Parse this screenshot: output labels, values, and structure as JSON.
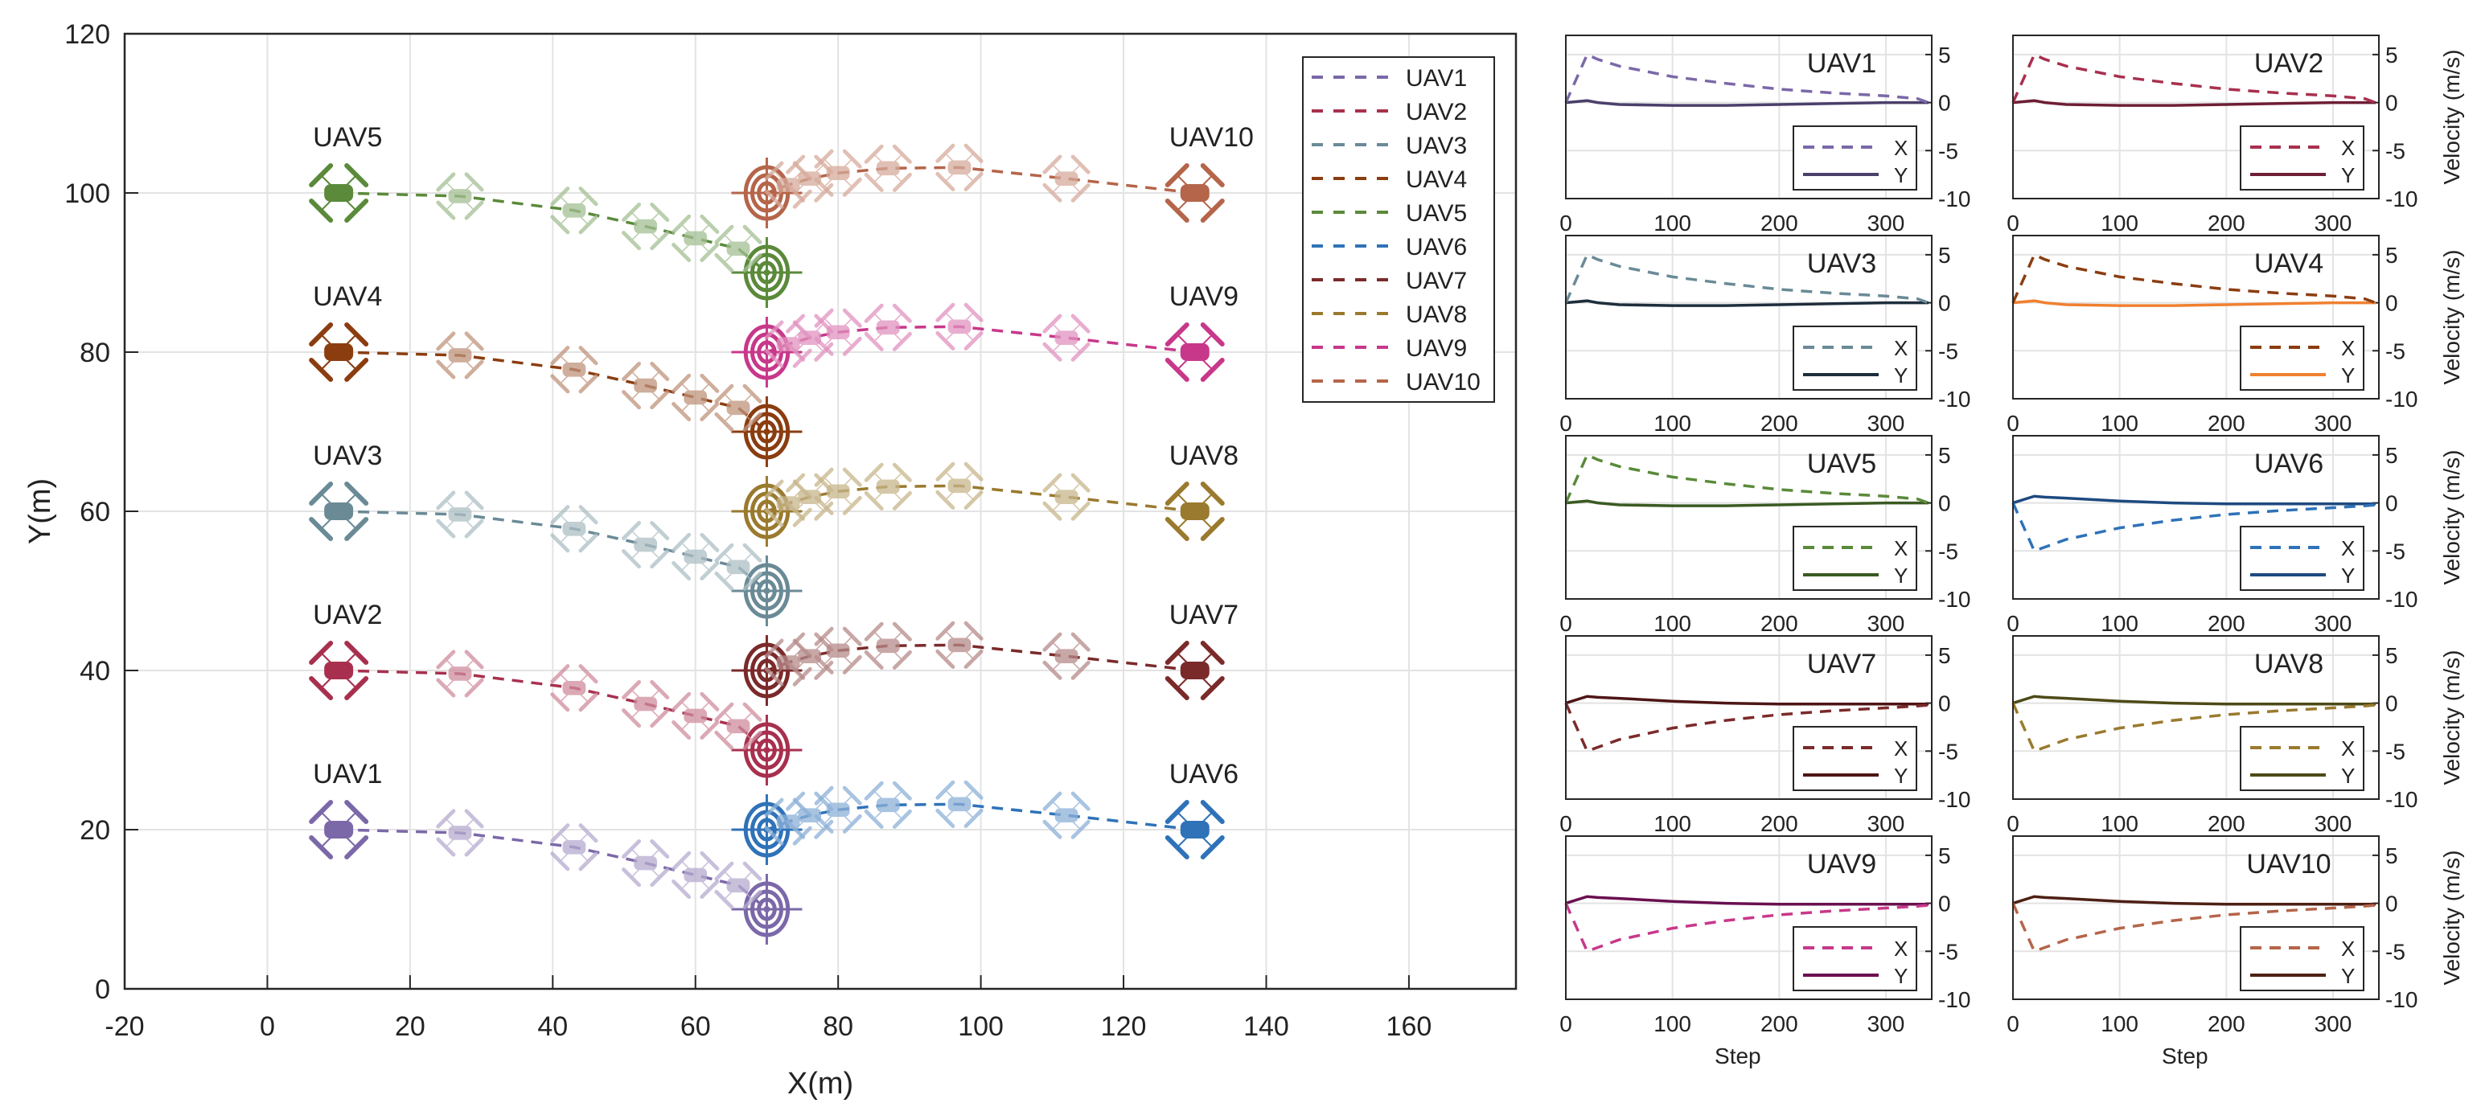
{
  "chart_data": [
    {
      "type": "line",
      "title": "",
      "xlabel": "X(m)",
      "ylabel": "Y(m)",
      "xlim": [
        -20,
        175
      ],
      "ylim": [
        0,
        120
      ],
      "xticks": [
        "-20",
        "0",
        "20",
        "40",
        "60",
        "80",
        "100",
        "120",
        "140",
        "160"
      ],
      "yticks": [
        "0",
        "20",
        "40",
        "60",
        "80",
        "100",
        "120"
      ],
      "grid": true,
      "legend_position": "top-right",
      "series": [
        {
          "name": "UAV1",
          "color": "#7b68a8",
          "label": "UAV1",
          "x": [
            10,
            27,
            43,
            53,
            60,
            66,
            70
          ],
          "y": [
            20,
            19.6,
            17.8,
            15.8,
            14.3,
            13,
            10
          ],
          "target": [
            70,
            10
          ]
        },
        {
          "name": "UAV2",
          "color": "#a8304e",
          "label": "UAV2",
          "x": [
            10,
            27,
            43,
            53,
            60,
            66,
            70
          ],
          "y": [
            40,
            39.6,
            37.8,
            35.8,
            34.3,
            33,
            30
          ],
          "target": [
            70,
            30
          ]
        },
        {
          "name": "UAV3",
          "color": "#6a8a96",
          "label": "UAV3",
          "x": [
            10,
            27,
            43,
            53,
            60,
            66,
            70
          ],
          "y": [
            60,
            59.6,
            57.8,
            55.8,
            54.3,
            53,
            50
          ],
          "target": [
            70,
            50
          ]
        },
        {
          "name": "UAV4",
          "color": "#8b3d10",
          "label": "UAV4",
          "x": [
            10,
            27,
            43,
            53,
            60,
            66,
            70
          ],
          "y": [
            80,
            79.6,
            77.8,
            75.8,
            74.3,
            73,
            70
          ],
          "target": [
            70,
            70
          ]
        },
        {
          "name": "UAV5",
          "color": "#5a8a3a",
          "label": "UAV5",
          "x": [
            10,
            27,
            43,
            53,
            60,
            66,
            70
          ],
          "y": [
            100,
            99.6,
            97.8,
            95.8,
            94.3,
            93,
            90
          ],
          "target": [
            70,
            90
          ]
        },
        {
          "name": "UAV6",
          "color": "#2f72b8",
          "label": "UAV6",
          "x": [
            130,
            112,
            97,
            87,
            80,
            76,
            73,
            70
          ],
          "y": [
            20,
            21.8,
            23.2,
            23.1,
            22.5,
            21.8,
            21,
            20
          ],
          "target": [
            70,
            20
          ]
        },
        {
          "name": "UAV7",
          "color": "#7b2a2a",
          "label": "UAV7",
          "x": [
            130,
            112,
            97,
            87,
            80,
            76,
            73,
            70
          ],
          "y": [
            40,
            41.8,
            43.2,
            43.1,
            42.5,
            41.8,
            41,
            40
          ],
          "target": [
            70,
            40
          ]
        },
        {
          "name": "UAV8",
          "color": "#9a7a2e",
          "label": "UAV8",
          "x": [
            130,
            112,
            97,
            87,
            80,
            76,
            73,
            70
          ],
          "y": [
            60,
            61.8,
            63.2,
            63.1,
            62.5,
            61.8,
            61,
            60
          ],
          "target": [
            70,
            60
          ]
        },
        {
          "name": "UAV9",
          "color": "#c8388a",
          "label": "UAV9",
          "x": [
            130,
            112,
            97,
            87,
            80,
            76,
            73,
            70
          ],
          "y": [
            80,
            81.8,
            83.2,
            83.1,
            82.5,
            81.8,
            81,
            80
          ],
          "target": [
            70,
            80
          ]
        },
        {
          "name": "UAV10",
          "color": "#b5654a",
          "label": "UAV10",
          "x": [
            130,
            112,
            97,
            87,
            80,
            76,
            73,
            70
          ],
          "y": [
            100,
            101.8,
            103.2,
            103.1,
            102.5,
            101.8,
            101,
            100
          ],
          "target": [
            70,
            100
          ]
        }
      ]
    },
    {
      "type": "line",
      "subplots": true,
      "xlabel": "Step",
      "ylabel": "Velocity (m/s)",
      "xlim": [
        0,
        343
      ],
      "ylim": [
        -10,
        7
      ],
      "xticks": [
        "0",
        "100",
        "200",
        "300"
      ],
      "yticks": [
        "5",
        "0",
        "-5",
        "-10"
      ],
      "grid": true,
      "legend_position": "bottom-right",
      "legend_labels": [
        "X",
        "Y"
      ],
      "steps": [
        0,
        20,
        30,
        50,
        100,
        150,
        200,
        250,
        300,
        330,
        340
      ],
      "panels": [
        {
          "title": "UAV1",
          "x_color": "#7b68a8",
          "y_color": "#4b3f6b",
          "vx": [
            0,
            5,
            4.5,
            3.8,
            2.7,
            2.0,
            1.4,
            1.0,
            0.7,
            0.4,
            0
          ],
          "vy": [
            0,
            0.2,
            0,
            -0.2,
            -0.3,
            -0.3,
            -0.2,
            -0.1,
            0,
            0,
            0
          ]
        },
        {
          "title": "UAV2",
          "x_color": "#a8304e",
          "y_color": "#6e1e35",
          "vx": [
            0,
            5,
            4.5,
            3.8,
            2.7,
            2.0,
            1.4,
            1.0,
            0.7,
            0.4,
            0
          ],
          "vy": [
            0,
            0.2,
            0,
            -0.2,
            -0.3,
            -0.3,
            -0.2,
            -0.1,
            0,
            0,
            0
          ]
        },
        {
          "title": "UAV3",
          "x_color": "#6a8a96",
          "y_color": "#1e2e3c",
          "vx": [
            0,
            5,
            4.5,
            3.8,
            2.7,
            2.0,
            1.4,
            1.0,
            0.7,
            0.4,
            0
          ],
          "vy": [
            0,
            0.2,
            0,
            -0.2,
            -0.3,
            -0.3,
            -0.2,
            -0.1,
            0,
            0,
            0
          ]
        },
        {
          "title": "UAV4",
          "x_color": "#8b3d10",
          "y_color": "#f08030",
          "vx": [
            0,
            5,
            4.5,
            3.8,
            2.7,
            2.0,
            1.4,
            1.0,
            0.7,
            0.4,
            0
          ],
          "vy": [
            0,
            0.2,
            0,
            -0.2,
            -0.3,
            -0.3,
            -0.2,
            -0.1,
            0,
            0,
            0
          ]
        },
        {
          "title": "UAV5",
          "x_color": "#5a8a3a",
          "y_color": "#3a5a22",
          "vx": [
            0,
            5,
            4.5,
            3.8,
            2.7,
            2.0,
            1.4,
            1.0,
            0.7,
            0.4,
            0
          ],
          "vy": [
            0,
            0.2,
            0,
            -0.2,
            -0.3,
            -0.3,
            -0.2,
            -0.1,
            0,
            0,
            0
          ]
        },
        {
          "title": "UAV6",
          "x_color": "#2f72b8",
          "y_color": "#1e4a80",
          "vx": [
            0,
            -5,
            -4.6,
            -3.8,
            -2.6,
            -1.8,
            -1.2,
            -0.8,
            -0.5,
            -0.3,
            -0.2
          ],
          "vy": [
            0,
            0.7,
            0.6,
            0.5,
            0.2,
            0,
            -0.1,
            -0.1,
            -0.1,
            -0.1,
            -0.1
          ]
        },
        {
          "title": "UAV7",
          "x_color": "#7b2a2a",
          "y_color": "#4e1515",
          "vx": [
            0,
            -5,
            -4.6,
            -3.8,
            -2.6,
            -1.8,
            -1.2,
            -0.8,
            -0.5,
            -0.3,
            -0.2
          ],
          "vy": [
            0,
            0.7,
            0.6,
            0.5,
            0.2,
            0,
            -0.1,
            -0.1,
            -0.1,
            -0.1,
            -0.1
          ]
        },
        {
          "title": "UAV8",
          "x_color": "#9a7a2e",
          "y_color": "#4e4a18",
          "vx": [
            0,
            -5,
            -4.6,
            -3.8,
            -2.6,
            -1.8,
            -1.2,
            -0.8,
            -0.5,
            -0.3,
            -0.2
          ],
          "vy": [
            0,
            0.7,
            0.6,
            0.5,
            0.2,
            0,
            -0.1,
            -0.1,
            -0.1,
            -0.1,
            -0.1
          ]
        },
        {
          "title": "UAV9",
          "x_color": "#c8388a",
          "y_color": "#6a1050",
          "vx": [
            0,
            -5,
            -4.6,
            -3.8,
            -2.6,
            -1.8,
            -1.2,
            -0.8,
            -0.5,
            -0.3,
            -0.2
          ],
          "vy": [
            0,
            0.7,
            0.6,
            0.5,
            0.2,
            0,
            -0.1,
            -0.1,
            -0.1,
            -0.1,
            -0.1
          ]
        },
        {
          "title": "UAV10",
          "x_color": "#b5654a",
          "y_color": "#4e2015",
          "vx": [
            0,
            -5,
            -4.6,
            -3.8,
            -2.6,
            -1.8,
            -1.2,
            -0.8,
            -0.5,
            -0.3,
            -0.2
          ],
          "vy": [
            0,
            0.7,
            0.6,
            0.5,
            0.2,
            0,
            -0.1,
            -0.1,
            -0.1,
            -0.1,
            -0.1
          ]
        }
      ]
    }
  ]
}
